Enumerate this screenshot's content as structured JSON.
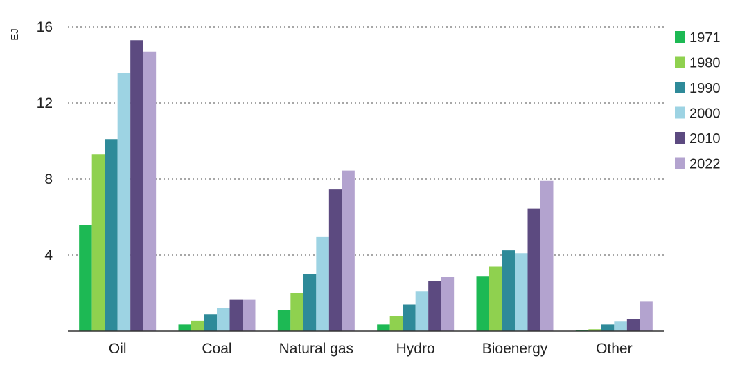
{
  "chart_data": {
    "type": "bar",
    "title": "",
    "xlabel": "",
    "ylabel": "EJ",
    "ylim": [
      0,
      16
    ],
    "yticks": [
      "4",
      "8",
      "12",
      "16"
    ],
    "grid": true,
    "legend_position": "right",
    "categories": [
      "Oil",
      "Coal",
      "Natural gas",
      "Hydro",
      "Bioenergy",
      "Other"
    ],
    "series": [
      {
        "name": "1971",
        "color": "#1db954",
        "values": [
          5.6,
          0.35,
          1.1,
          0.35,
          2.9,
          0.05
        ]
      },
      {
        "name": "1980",
        "color": "#8fd14f",
        "values": [
          9.3,
          0.55,
          2.0,
          0.8,
          3.4,
          0.1
        ]
      },
      {
        "name": "1990",
        "color": "#2e8a99",
        "values": [
          10.1,
          0.9,
          3.0,
          1.4,
          4.25,
          0.35
        ]
      },
      {
        "name": "2000",
        "color": "#9dd3e3",
        "values": [
          13.6,
          1.2,
          4.95,
          2.1,
          4.1,
          0.5
        ]
      },
      {
        "name": "2010",
        "color": "#5c4a80",
        "values": [
          15.3,
          1.65,
          7.45,
          2.65,
          6.45,
          0.65
        ]
      },
      {
        "name": "2022",
        "color": "#b3a3cf",
        "values": [
          14.7,
          1.65,
          8.45,
          2.85,
          7.9,
          1.55
        ]
      }
    ]
  }
}
